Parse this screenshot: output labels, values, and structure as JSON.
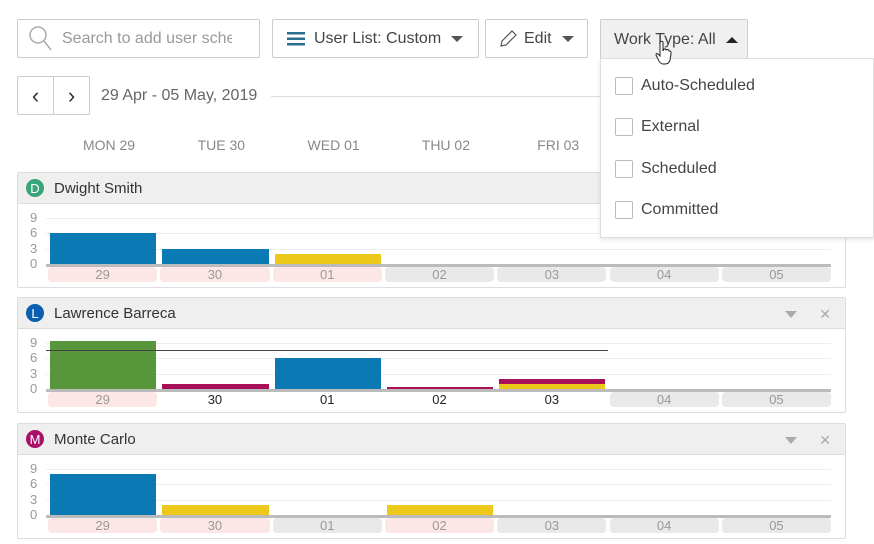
{
  "toolbar": {
    "search_placeholder": "Search to add user sche",
    "user_list": "User List: Custom",
    "edit": "Edit",
    "work_type": "Work Type: All"
  },
  "work_type_options": [
    "Auto-Scheduled",
    "External",
    "Scheduled",
    "Committed"
  ],
  "nav": {
    "prev": "‹",
    "next": "›",
    "date_range": "29 Apr - 05 May, 2019"
  },
  "day_headers": [
    "MON 29",
    "TUE 30",
    "WED 01",
    "THU 02",
    "FRI 03"
  ],
  "y_ticks": [
    "9",
    "6",
    "3",
    "0"
  ],
  "colors": {
    "blue": "#0b79b4",
    "yellow": "#ecc81a",
    "green": "#57963a",
    "magenta": "#a8105a",
    "pink_label": "#fde6e6",
    "grey_label": "#e9e9e9"
  },
  "users": [
    {
      "name": "Dwight Smith",
      "initial": "D",
      "avatar_color": "#3aa57a",
      "days": [
        {
          "label": "29",
          "style": "pink",
          "bars": [
            {
              "v": 6,
              "c": "blue"
            }
          ]
        },
        {
          "label": "30",
          "style": "pink",
          "bars": [
            {
              "v": 3,
              "c": "blue"
            }
          ]
        },
        {
          "label": "01",
          "style": "pink",
          "bars": [
            {
              "v": 2,
              "c": "yellow"
            }
          ]
        },
        {
          "label": "02",
          "style": "grey",
          "bars": []
        },
        {
          "label": "03",
          "style": "grey",
          "bars": []
        },
        {
          "label": "04",
          "style": "grey",
          "bars": []
        },
        {
          "label": "05",
          "style": "grey",
          "bars": []
        }
      ]
    },
    {
      "name": "Lawrence Barreca",
      "initial": "L",
      "avatar_color": "#0b5fb0",
      "capacity": 7.5,
      "days": [
        {
          "label": "29",
          "style": "pink",
          "bars": [
            {
              "v": 9.3,
              "c": "green"
            }
          ]
        },
        {
          "label": "30",
          "style": "none",
          "bars": [
            {
              "v": 1,
              "c": "magenta"
            }
          ]
        },
        {
          "label": "01",
          "style": "none",
          "bars": [
            {
              "v": 6,
              "c": "blue"
            }
          ]
        },
        {
          "label": "02",
          "style": "none",
          "bars": [
            {
              "v": 0.4,
              "c": "magenta"
            }
          ]
        },
        {
          "label": "03",
          "style": "none",
          "bars": [
            {
              "v": 1,
              "c": "yellow"
            },
            {
              "v": 1,
              "c": "magenta"
            }
          ]
        },
        {
          "label": "04",
          "style": "grey",
          "bars": []
        },
        {
          "label": "05",
          "style": "grey",
          "bars": []
        }
      ]
    },
    {
      "name": "Monte Carlo",
      "initial": "M",
      "avatar_color": "#a8106a",
      "days": [
        {
          "label": "29",
          "style": "pink",
          "bars": [
            {
              "v": 8,
              "c": "blue"
            }
          ]
        },
        {
          "label": "30",
          "style": "pink",
          "bars": [
            {
              "v": 2,
              "c": "yellow"
            }
          ]
        },
        {
          "label": "01",
          "style": "grey",
          "bars": []
        },
        {
          "label": "02",
          "style": "pink",
          "bars": [
            {
              "v": 2,
              "c": "yellow"
            }
          ]
        },
        {
          "label": "03",
          "style": "grey",
          "bars": []
        },
        {
          "label": "04",
          "style": "grey",
          "bars": []
        },
        {
          "label": "05",
          "style": "grey",
          "bars": []
        }
      ]
    }
  ]
}
